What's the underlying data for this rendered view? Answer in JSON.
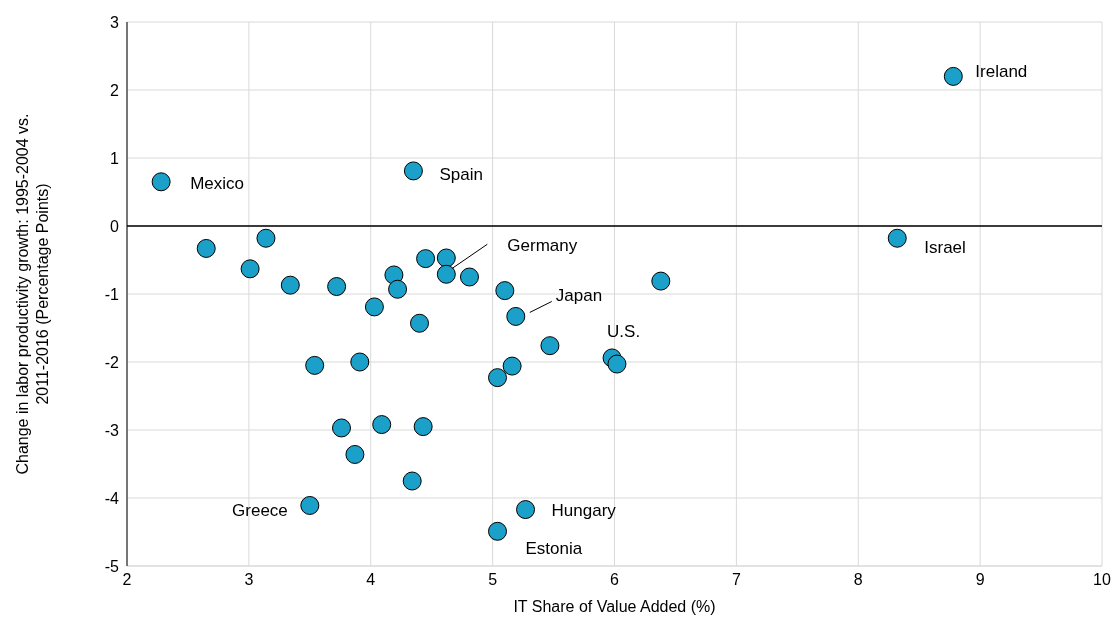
{
  "chart_data": {
    "type": "scatter",
    "xlabel": "IT Share of Value Added (%)",
    "ylabel": "Change in labor productivity growth: 1995-2004 vs.\n2011-2016 (Percentage Points)",
    "x": [
      2.28,
      4.35,
      8.78,
      8.32,
      2.65,
      3.14,
      3.01,
      3.34,
      3.72,
      4.19,
      4.22,
      4.03,
      4.45,
      4.62,
      4.62,
      4.81,
      5.1,
      5.19,
      6.38,
      4.4,
      3.54,
      3.91,
      5.47,
      5.98,
      6.02,
      5.16,
      5.04,
      3.76,
      4.09,
      4.43,
      3.87,
      4.34,
      3.5,
      5.27,
      5.04
    ],
    "values": [
      0.65,
      0.81,
      2.2,
      -0.18,
      -0.33,
      -0.18,
      -0.63,
      -0.87,
      -0.89,
      -0.72,
      -0.93,
      -1.19,
      -0.48,
      -0.47,
      -0.71,
      -0.75,
      -0.95,
      -1.33,
      -0.81,
      -1.43,
      -2.05,
      -2.0,
      -1.76,
      -1.94,
      -2.03,
      -2.06,
      -2.23,
      -2.97,
      -2.92,
      -2.95,
      -3.36,
      -3.75,
      -4.11,
      -4.17,
      -4.49
    ],
    "color": "#1ba1c9",
    "marker": "circle",
    "grid": true,
    "xlim": [
      2,
      10
    ],
    "xticks": [
      2,
      3,
      4,
      5,
      6,
      7,
      8,
      9,
      10
    ],
    "ylim": [
      -5,
      3
    ],
    "yticks": [
      -5,
      -4,
      -3,
      -2,
      -1,
      0,
      1,
      2,
      3
    ],
    "ref_lines": [
      {
        "axis": "y",
        "value": 0,
        "color": "#000000"
      }
    ],
    "annotations": [
      {
        "text": "Mexico",
        "x": 2.28,
        "y": 0.65
      },
      {
        "text": "Spain",
        "x": 4.35,
        "y": 0.81
      },
      {
        "text": "Ireland",
        "x": 8.78,
        "y": 2.2
      },
      {
        "text": "Israel",
        "x": 8.32,
        "y": -0.18
      },
      {
        "text": "Germany",
        "x": 4.62,
        "y": -0.71
      },
      {
        "text": "Japan",
        "x": 5.19,
        "y": -1.33
      },
      {
        "text": "U.S.",
        "x": 5.98,
        "y": -1.94
      },
      {
        "text": "Greece",
        "x": 3.5,
        "y": -4.11
      },
      {
        "text": "Hungary",
        "x": 5.27,
        "y": -4.17
      },
      {
        "text": "Estonia",
        "x": 5.04,
        "y": -4.49
      }
    ]
  }
}
